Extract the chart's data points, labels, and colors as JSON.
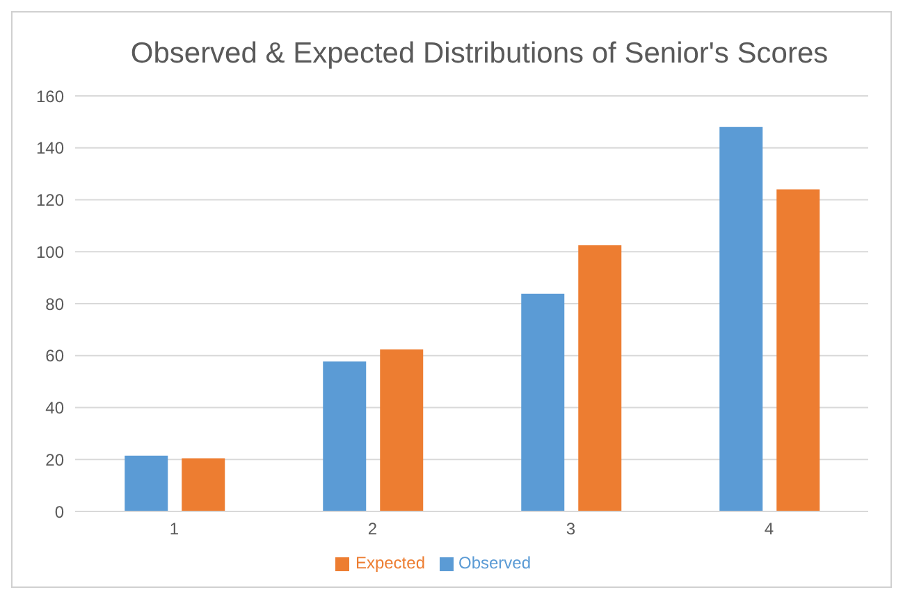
{
  "chart_data": {
    "type": "bar",
    "title": "Observed & Expected Distributions of Senior's Scores",
    "categories": [
      "1",
      "2",
      "3",
      "4"
    ],
    "series": [
      {
        "name": "Observed",
        "color": "#5b9bd5",
        "values": [
          21.5,
          57.7,
          83.8,
          148
        ]
      },
      {
        "name": "Expected",
        "color": "#ed7d31",
        "values": [
          20.5,
          62.4,
          102.5,
          124
        ]
      }
    ],
    "ylim": [
      0,
      160
    ],
    "yticks": [
      0,
      20,
      40,
      60,
      80,
      100,
      120,
      140,
      160
    ],
    "grid": "y",
    "legend": "bottom"
  }
}
